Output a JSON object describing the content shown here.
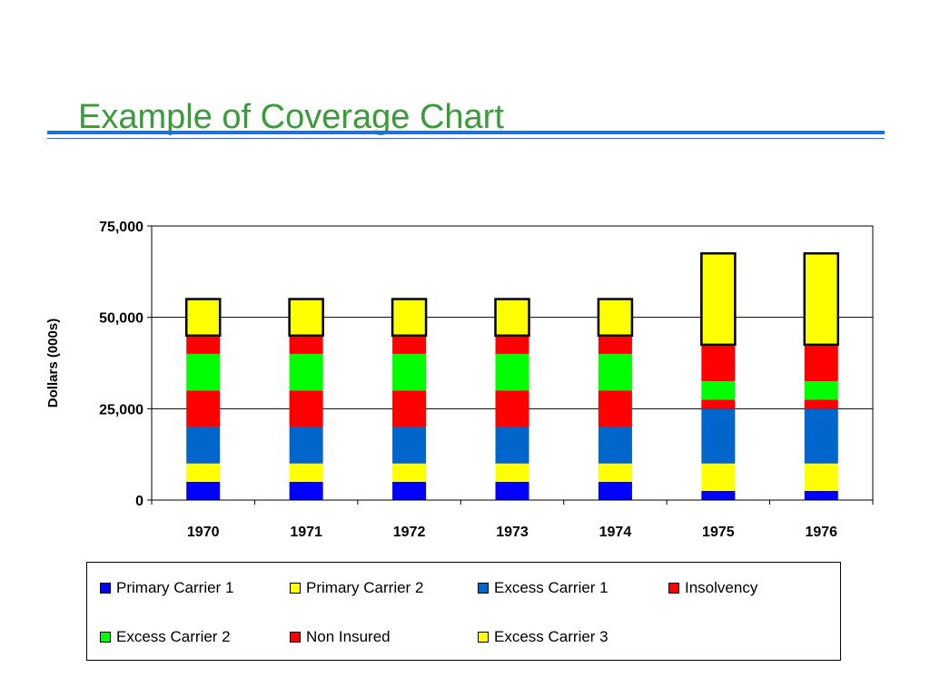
{
  "slide": {
    "title": "Example of Coverage Chart"
  },
  "chart_data": {
    "type": "bar",
    "stacked": true,
    "categories": [
      "1970",
      "1971",
      "1972",
      "1973",
      "1974",
      "1975",
      "1976"
    ],
    "ylabel": "Dollars (000s)",
    "ylim": [
      0,
      75000
    ],
    "yticks": [
      0,
      25000,
      50000,
      75000
    ],
    "ytick_labels": [
      "0",
      "25,000",
      "50,000",
      "75,000"
    ],
    "grid": true,
    "legend_position": "bottom",
    "series": [
      {
        "name": "Primary Carrier 1",
        "color": "#0000ff",
        "values": [
          5000,
          5000,
          5000,
          5000,
          5000,
          2500,
          2500
        ]
      },
      {
        "name": "Primary Carrier 2",
        "color": "#ffff00",
        "values": [
          5000,
          5000,
          5000,
          5000,
          5000,
          7500,
          7500
        ]
      },
      {
        "name": "Excess Carrier 1",
        "color": "#0066cc",
        "values": [
          10000,
          10000,
          10000,
          10000,
          10000,
          15000,
          15000
        ]
      },
      {
        "name": "Insolvency",
        "color": "#ff0000",
        "values": [
          10000,
          10000,
          10000,
          10000,
          10000,
          2500,
          2500
        ]
      },
      {
        "name": "Excess Carrier 2",
        "color": "#00ff00",
        "values": [
          10000,
          10000,
          10000,
          10000,
          10000,
          5000,
          5000
        ]
      },
      {
        "name": "Non Insured",
        "color": "#ff0000",
        "values": [
          5000,
          5000,
          5000,
          5000,
          5000,
          10000,
          10000
        ]
      },
      {
        "name": "Excess Carrier 3",
        "color": "#ffff00",
        "thick_border": true,
        "values": [
          10000,
          10000,
          10000,
          10000,
          10000,
          25000,
          25000
        ]
      }
    ]
  }
}
